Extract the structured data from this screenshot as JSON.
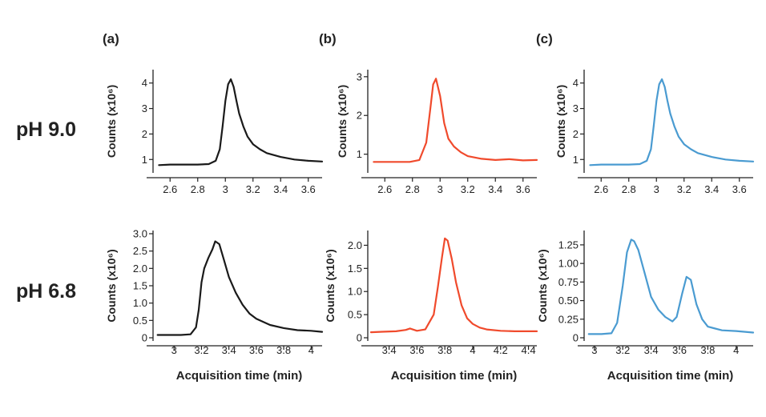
{
  "row_labels": [
    "pH 9.0",
    "pH 6.8"
  ],
  "column_labels": [
    "(a)",
    "(b)",
    "(c)"
  ],
  "colors": {
    "a": "#1a1a1a",
    "b": "#f04a2c",
    "c": "#4a9bd1",
    "axis": "#222222"
  },
  "chart_data": [
    {
      "id": "a-top",
      "type": "line",
      "title": "(a) pH 9.0",
      "xlabel": "",
      "ylabel": "Counts (x10⁶)",
      "xlim": [
        2.5,
        3.7
      ],
      "ylim": [
        0.6,
        4.4
      ],
      "xticks": [
        2.6,
        2.8,
        3,
        3.2,
        3.4,
        3.6
      ],
      "xtick_labels": [
        "2.6",
        "2.8",
        "3",
        "3.2",
        "3.4",
        "3.6"
      ],
      "yticks": [
        1,
        2,
        3,
        4
      ],
      "ytick_labels": [
        "1",
        "2",
        "3",
        "4"
      ],
      "series": [
        {
          "name": "pH 9.0",
          "color": "#1a1a1a",
          "x": [
            2.52,
            2.6,
            2.7,
            2.8,
            2.88,
            2.93,
            2.96,
            2.98,
            3.0,
            3.02,
            3.04,
            3.06,
            3.08,
            3.1,
            3.13,
            3.16,
            3.2,
            3.25,
            3.3,
            3.4,
            3.5,
            3.6,
            3.7
          ],
          "y": [
            0.78,
            0.8,
            0.8,
            0.8,
            0.82,
            0.95,
            1.4,
            2.3,
            3.3,
            3.95,
            4.15,
            3.85,
            3.3,
            2.8,
            2.3,
            1.9,
            1.6,
            1.4,
            1.25,
            1.1,
            1.0,
            0.95,
            0.92
          ]
        }
      ]
    },
    {
      "id": "b-top",
      "type": "line",
      "title": "(b) pH 9.0",
      "xlabel": "",
      "ylabel": "Counts (x10⁶)",
      "xlim": [
        2.5,
        3.7
      ],
      "ylim": [
        0.6,
        3.1
      ],
      "xticks": [
        2.6,
        2.8,
        3,
        3.2,
        3.4,
        3.6
      ],
      "xtick_labels": [
        "2.6",
        "2.8",
        "3",
        "3.2",
        "3.4",
        "3.6"
      ],
      "yticks": [
        1,
        2,
        3
      ],
      "ytick_labels": [
        "1",
        "2",
        "3"
      ],
      "series": [
        {
          "name": "pH 9.0",
          "color": "#f04a2c",
          "x": [
            2.52,
            2.6,
            2.7,
            2.78,
            2.85,
            2.9,
            2.93,
            2.95,
            2.97,
            3.0,
            3.03,
            3.06,
            3.1,
            3.15,
            3.2,
            3.3,
            3.4,
            3.5,
            3.6,
            3.7
          ],
          "y": [
            0.8,
            0.8,
            0.8,
            0.8,
            0.85,
            1.3,
            2.2,
            2.8,
            2.95,
            2.5,
            1.8,
            1.4,
            1.2,
            1.05,
            0.95,
            0.88,
            0.85,
            0.87,
            0.84,
            0.85
          ]
        }
      ]
    },
    {
      "id": "c-top",
      "type": "line",
      "title": "(c) pH 9.0",
      "xlabel": "",
      "ylabel": "Counts (x10⁶)",
      "xlim": [
        2.5,
        3.7
      ],
      "ylim": [
        0.6,
        4.4
      ],
      "xticks": [
        2.6,
        2.8,
        3,
        3.2,
        3.4,
        3.6
      ],
      "xtick_labels": [
        "2.6",
        "2.8",
        "3",
        "3.2",
        "3.4",
        "3.6"
      ],
      "yticks": [
        1,
        2,
        3,
        4
      ],
      "ytick_labels": [
        "1",
        "2",
        "3",
        "4"
      ],
      "series": [
        {
          "name": "pH 9.0",
          "color": "#4a9bd1",
          "x": [
            2.52,
            2.6,
            2.7,
            2.8,
            2.88,
            2.93,
            2.96,
            2.98,
            3.0,
            3.02,
            3.04,
            3.06,
            3.08,
            3.1,
            3.13,
            3.16,
            3.2,
            3.25,
            3.3,
            3.4,
            3.5,
            3.6,
            3.7
          ],
          "y": [
            0.78,
            0.8,
            0.8,
            0.8,
            0.82,
            0.95,
            1.4,
            2.3,
            3.3,
            3.95,
            4.15,
            3.85,
            3.3,
            2.8,
            2.3,
            1.9,
            1.6,
            1.4,
            1.25,
            1.1,
            1.0,
            0.95,
            0.92
          ]
        }
      ]
    },
    {
      "id": "a-bottom",
      "type": "line",
      "title": "(a) pH 6.8",
      "xlabel": "Acquisition time (min)",
      "ylabel": "Counts (x10⁶)",
      "xlim": [
        2.87,
        4.08
      ],
      "ylim": [
        0,
        3.0
      ],
      "xticks": [
        3,
        3.2,
        3.4,
        3.6,
        3.8,
        4
      ],
      "xtick_labels": [
        "3",
        "3.2",
        "3.4",
        "3.6",
        "3.8",
        "4"
      ],
      "yticks": [
        0,
        0.5,
        1.0,
        1.5,
        2.0,
        2.5,
        3.0
      ],
      "ytick_labels": [
        "0",
        "0.5",
        "1.0",
        "1.5",
        "2.0",
        "2.5",
        "3.0"
      ],
      "series": [
        {
          "name": "pH 6.8",
          "color": "#1a1a1a",
          "x": [
            2.88,
            2.95,
            3.05,
            3.12,
            3.16,
            3.18,
            3.2,
            3.22,
            3.25,
            3.28,
            3.3,
            3.33,
            3.36,
            3.4,
            3.45,
            3.5,
            3.55,
            3.6,
            3.7,
            3.8,
            3.9,
            4.0,
            4.08
          ],
          "y": [
            0.08,
            0.08,
            0.08,
            0.1,
            0.3,
            0.8,
            1.6,
            2.0,
            2.3,
            2.55,
            2.78,
            2.7,
            2.3,
            1.75,
            1.3,
            0.95,
            0.7,
            0.55,
            0.37,
            0.28,
            0.22,
            0.2,
            0.17
          ]
        }
      ]
    },
    {
      "id": "b-bottom",
      "type": "line",
      "title": "(b) pH 6.8",
      "xlabel": "Acquisition time (min)",
      "ylabel": "Counts (x10⁶)",
      "xlim": [
        3.27,
        4.46
      ],
      "ylim": [
        0,
        2.25
      ],
      "xticks": [
        3.4,
        3.6,
        3.8,
        4,
        4.2,
        4.4
      ],
      "xtick_labels": [
        "3.4",
        "3.6",
        "3.8",
        "4",
        "4.2",
        "4.4"
      ],
      "yticks": [
        0,
        0.5,
        1.0,
        1.5,
        2.0
      ],
      "ytick_labels": [
        "0",
        "0.5",
        "1.0",
        "1.5",
        "2.0"
      ],
      "series": [
        {
          "name": "pH 6.8",
          "color": "#f04a2c",
          "x": [
            3.27,
            3.35,
            3.45,
            3.52,
            3.55,
            3.6,
            3.66,
            3.72,
            3.75,
            3.78,
            3.8,
            3.82,
            3.85,
            3.88,
            3.92,
            3.96,
            4.0,
            4.05,
            4.1,
            4.2,
            4.3,
            4.4,
            4.46
          ],
          "y": [
            0.12,
            0.13,
            0.14,
            0.17,
            0.2,
            0.15,
            0.18,
            0.5,
            1.1,
            1.75,
            2.15,
            2.1,
            1.7,
            1.2,
            0.7,
            0.42,
            0.3,
            0.22,
            0.18,
            0.15,
            0.14,
            0.14,
            0.14
          ]
        }
      ]
    },
    {
      "id": "c-bottom",
      "type": "line",
      "title": "(c) pH 6.8",
      "xlabel": "Acquisition time (min)",
      "ylabel": "Counts (x10⁶)",
      "xlim": [
        2.95,
        4.12
      ],
      "ylim": [
        0,
        1.4
      ],
      "xticks": [
        3,
        3.2,
        3.4,
        3.6,
        3.8,
        4
      ],
      "xtick_labels": [
        "3",
        "3.2",
        "3.4",
        "3.6",
        "3.8",
        "4"
      ],
      "yticks": [
        0,
        0.25,
        0.5,
        0.75,
        1.0,
        1.25
      ],
      "ytick_labels": [
        "0",
        "0.25",
        "0.50",
        "0.75",
        "1.00",
        "1.25"
      ],
      "series": [
        {
          "name": "pH 6.8",
          "color": "#4a9bd1",
          "x": [
            2.96,
            3.05,
            3.12,
            3.16,
            3.2,
            3.23,
            3.26,
            3.28,
            3.31,
            3.35,
            3.4,
            3.45,
            3.5,
            3.55,
            3.58,
            3.62,
            3.65,
            3.68,
            3.72,
            3.76,
            3.8,
            3.9,
            4.0,
            4.12
          ],
          "y": [
            0.05,
            0.05,
            0.06,
            0.2,
            0.7,
            1.15,
            1.32,
            1.3,
            1.18,
            0.9,
            0.55,
            0.38,
            0.28,
            0.22,
            0.28,
            0.6,
            0.82,
            0.78,
            0.45,
            0.25,
            0.15,
            0.1,
            0.09,
            0.07
          ]
        }
      ]
    }
  ]
}
